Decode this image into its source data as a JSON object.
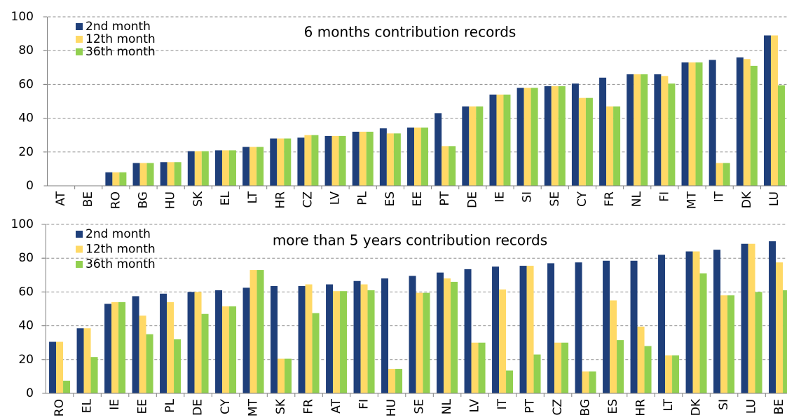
{
  "chart_data": [
    {
      "type": "bar",
      "title": "6 months contribution records",
      "categories": [
        "AT",
        "BE",
        "RO",
        "BG",
        "HU",
        "SK",
        "EL",
        "LT",
        "HR",
        "CZ",
        "LV",
        "PL",
        "ES",
        "EE",
        "PT",
        "DE",
        "IE",
        "SI",
        "SE",
        "CY",
        "FR",
        "NL",
        "FI",
        "MT",
        "IT",
        "DK",
        "LU"
      ],
      "series": [
        {
          "name": "2nd month",
          "color": "#1f3f7a",
          "values": [
            0,
            0,
            8,
            13.5,
            14,
            20.5,
            21,
            23,
            28,
            28.5,
            29.5,
            32,
            34,
            34.5,
            43,
            47,
            54,
            58,
            59,
            60.5,
            64,
            66,
            66,
            73,
            74.5,
            76,
            89
          ]
        },
        {
          "name": "12th month",
          "color": "#ffd966",
          "values": [
            0,
            0,
            8,
            13.5,
            14,
            20.5,
            21,
            23,
            28,
            30,
            29.5,
            32,
            31,
            34.5,
            23.5,
            47,
            54,
            58,
            59,
            52,
            47,
            66,
            65,
            73,
            13.5,
            75,
            89
          ]
        },
        {
          "name": "36th month",
          "color": "#92d050",
          "values": [
            0,
            0,
            8,
            13.5,
            14,
            20.5,
            21,
            23,
            28,
            30,
            29.5,
            32,
            31,
            34.5,
            23.5,
            47,
            54,
            58,
            59,
            52,
            47,
            66,
            60.5,
            73,
            13.5,
            71,
            59.5
          ]
        }
      ],
      "ylim": [
        0,
        100
      ],
      "yticks": [
        0,
        20,
        40,
        60,
        80,
        100
      ],
      "grid": true,
      "legend": "upper left"
    },
    {
      "type": "bar",
      "title": "more than 5 years contribution records",
      "categories": [
        "RO",
        "EL",
        "IE",
        "EE",
        "PL",
        "DE",
        "CY",
        "MT",
        "SK",
        "FR",
        "AT",
        "FI",
        "HU",
        "SE",
        "NL",
        "LV",
        "IT",
        "PT",
        "CZ",
        "BG",
        "ES",
        "HR",
        "LT",
        "DK",
        "SI",
        "LU",
        "BE"
      ],
      "series": [
        {
          "name": "2nd month",
          "color": "#1f3f7a",
          "values": [
            30.5,
            38.5,
            53,
            57.5,
            59,
            60,
            61,
            62.5,
            63.5,
            63.5,
            64.5,
            66.5,
            68,
            69.5,
            71.5,
            73.5,
            75,
            75.5,
            77,
            77.5,
            78.5,
            78.5,
            82,
            84,
            85,
            88.5,
            90
          ]
        },
        {
          "name": "12th month",
          "color": "#ffd966",
          "values": [
            30.5,
            38.5,
            54,
            46,
            54,
            60,
            51.5,
            73,
            20.5,
            64.5,
            60.5,
            64.5,
            14.5,
            59.5,
            68,
            30,
            61.5,
            75.5,
            30,
            13,
            55,
            39.5,
            22.5,
            84,
            58,
            88.5,
            77.5
          ]
        },
        {
          "name": "36th month",
          "color": "#92d050",
          "values": [
            7.5,
            21.5,
            54,
            35,
            32,
            47,
            51.5,
            73,
            20.5,
            47.5,
            60.5,
            61,
            14.5,
            59.5,
            66,
            30,
            13.5,
            23,
            30,
            13,
            31.5,
            28,
            22.5,
            71,
            58,
            60,
            61
          ]
        }
      ],
      "ylim": [
        0,
        100
      ],
      "yticks": [
        0,
        20,
        40,
        60,
        80,
        100
      ],
      "grid": true,
      "legend": "upper left"
    }
  ]
}
